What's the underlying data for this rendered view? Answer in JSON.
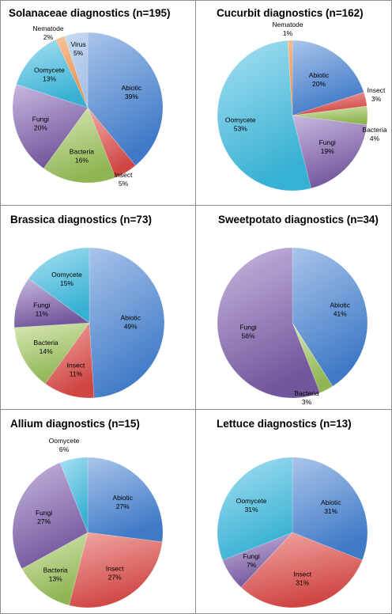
{
  "chart_data": [
    {
      "type": "pie",
      "title": "Solanaceae diagnostics (n=195)",
      "slices": [
        {
          "label": "Abiotic",
          "value": 39,
          "pct": "39%",
          "color": "abiotic"
        },
        {
          "label": "Insect",
          "value": 5,
          "pct": "5%",
          "color": "insect"
        },
        {
          "label": "Bacteria",
          "value": 16,
          "pct": "16%",
          "color": "bacteria"
        },
        {
          "label": "Fungi",
          "value": 20,
          "pct": "20%",
          "color": "fungi"
        },
        {
          "label": "Oomycete",
          "value": 13,
          "pct": "13%",
          "color": "oomycete"
        },
        {
          "label": "Nematode",
          "value": 2,
          "pct": "2%",
          "color": "nematode"
        },
        {
          "label": "Virus",
          "value": 5,
          "pct": "5%",
          "color": "virus"
        }
      ]
    },
    {
      "type": "pie",
      "title": "Cucurbit diagnostics (n=162)",
      "slices": [
        {
          "label": "Abiotic",
          "value": 20,
          "pct": "20%",
          "color": "abiotic"
        },
        {
          "label": "Insect",
          "value": 3,
          "pct": "3%",
          "color": "insect"
        },
        {
          "label": "Bacteria",
          "value": 4,
          "pct": "4%",
          "color": "bacteria"
        },
        {
          "label": "Fungi",
          "value": 19,
          "pct": "19%",
          "color": "fungi"
        },
        {
          "label": "Oomycete",
          "value": 53,
          "pct": "53%",
          "color": "oomycete"
        },
        {
          "label": "Nematode",
          "value": 1,
          "pct": "1%",
          "color": "nematode"
        }
      ]
    },
    {
      "type": "pie",
      "title": "Brassica diagnostics (n=73)",
      "slices": [
        {
          "label": "Abiotic",
          "value": 49,
          "pct": "49%",
          "color": "abiotic"
        },
        {
          "label": "Insect",
          "value": 11,
          "pct": "11%",
          "color": "insect"
        },
        {
          "label": "Bacteria",
          "value": 14,
          "pct": "14%",
          "color": "bacteria"
        },
        {
          "label": "Fungi",
          "value": 11,
          "pct": "11%",
          "color": "fungi"
        },
        {
          "label": "Oomycete",
          "value": 15,
          "pct": "15%",
          "color": "oomycete"
        }
      ]
    },
    {
      "type": "pie",
      "title": "Sweetpotato diagnostics (n=34)",
      "slices": [
        {
          "label": "Abiotic",
          "value": 41,
          "pct": "41%",
          "color": "abiotic"
        },
        {
          "label": "Bacteria",
          "value": 3,
          "pct": "3%",
          "color": "bacteria"
        },
        {
          "label": "Fungi",
          "value": 56,
          "pct": "56%",
          "color": "fungi"
        }
      ]
    },
    {
      "type": "pie",
      "title": "Allium diagnostics (n=15)",
      "slices": [
        {
          "label": "Abiotic",
          "value": 27,
          "pct": "27%",
          "color": "abiotic"
        },
        {
          "label": "Insect",
          "value": 27,
          "pct": "27%",
          "color": "insect"
        },
        {
          "label": "Bacteria",
          "value": 13,
          "pct": "13%",
          "color": "bacteria"
        },
        {
          "label": "Fungi",
          "value": 27,
          "pct": "27%",
          "color": "fungi"
        },
        {
          "label": "Oomycete",
          "value": 6,
          "pct": "6%",
          "color": "oomycete"
        }
      ]
    },
    {
      "type": "pie",
      "title": "Lettuce diagnostics (n=13)",
      "slices": [
        {
          "label": "Abiotic",
          "value": 31,
          "pct": "31%",
          "color": "abiotic"
        },
        {
          "label": "Insect",
          "value": 31,
          "pct": "31%",
          "color": "insect"
        },
        {
          "label": "Fungi",
          "value": 7,
          "pct": "7%",
          "color": "fungi"
        },
        {
          "label": "Oomycete",
          "value": 31,
          "pct": "31%",
          "color": "oomycete"
        }
      ]
    }
  ],
  "colors": {
    "abiotic": [
      "#a9c4ea",
      "#3f7ac7"
    ],
    "insect": [
      "#f2a9a6",
      "#cf4643"
    ],
    "bacteria": [
      "#d8e8b6",
      "#8eb552"
    ],
    "fungi": [
      "#c9b8e0",
      "#72579c"
    ],
    "oomycete": [
      "#a8e0f2",
      "#37b1d3"
    ],
    "nematode": [
      "#f8c49c",
      "#e88e4a"
    ],
    "virus": [
      "#c9dcf2",
      "#a6c1e6"
    ]
  }
}
